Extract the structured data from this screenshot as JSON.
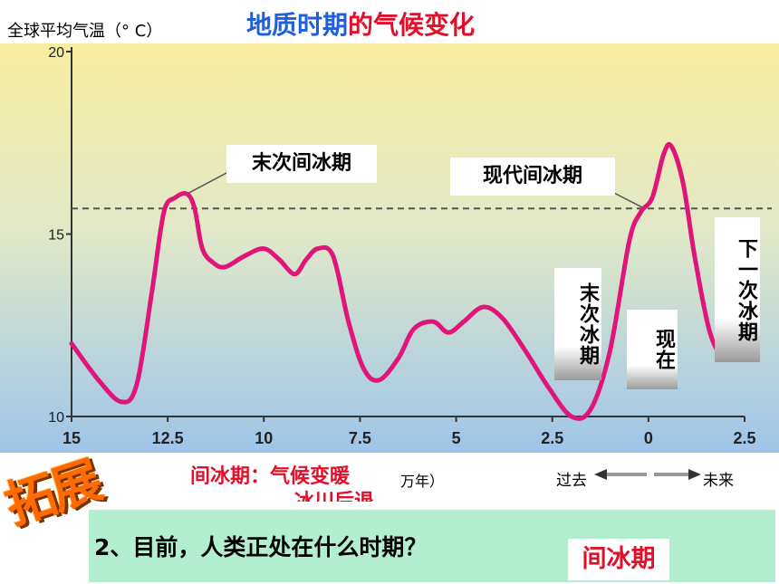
{
  "header": {
    "ylabel": "全球平均气温（° C）",
    "title_part1": "地质时期",
    "title_part2": "的气候变化"
  },
  "chart_data": {
    "type": "line",
    "title": "地质时期的气候变化",
    "ylabel": "全球平均气温（° C）",
    "xlabel": "万年）",
    "xlim": [
      15,
      -2.5
    ],
    "ylim": [
      10,
      20
    ],
    "x_ticks": [
      "15",
      "12.5",
      "10",
      "7.5",
      "5",
      "2.5",
      "0",
      "2.5"
    ],
    "y_ticks": [
      "20",
      "15",
      "10"
    ],
    "reference_line": {
      "y": 15.7,
      "style": "dashed"
    },
    "series": [
      {
        "color": "#e0157a",
        "x": [
          15,
          14.3,
          13.7,
          13.3,
          12.9,
          12.6,
          12.3,
          12.0,
          11.8,
          11.6,
          11.3,
          11.0,
          10.5,
          10.0,
          9.6,
          9.2,
          8.9,
          8.6,
          8.2,
          7.8,
          7.4,
          7.0,
          6.5,
          6.1,
          5.6,
          5.2,
          4.8,
          4.3,
          3.8,
          3.2,
          2.6,
          2.0,
          1.5,
          1.0,
          0.5,
          0.2,
          -0.1,
          -0.4,
          -0.6,
          -0.9,
          -1.2,
          -1.6,
          -2.0,
          -2.5
        ],
        "y": [
          12.0,
          11.0,
          10.4,
          10.9,
          13.5,
          15.6,
          16.0,
          16.1,
          15.7,
          14.6,
          14.2,
          14.1,
          14.4,
          14.6,
          14.3,
          13.9,
          14.3,
          14.6,
          14.4,
          12.6,
          11.3,
          11.0,
          11.6,
          12.4,
          12.6,
          12.3,
          12.6,
          13.0,
          12.7,
          11.8,
          10.8,
          10.0,
          10.2,
          11.8,
          14.8,
          15.6,
          16.0,
          17.2,
          17.4,
          16.4,
          14.4,
          12.3,
          11.6,
          11.7
        ]
      }
    ],
    "annotations": [
      {
        "text": "末次间冰期",
        "x": 12.0,
        "y": 16.1
      },
      {
        "text": "现代间冰期",
        "x": 0.1,
        "y": 15.7
      },
      {
        "text": "末次冰期",
        "x": 2.2,
        "y": 10.0
      },
      {
        "text": "现在",
        "x": 0,
        "y": 11.2
      },
      {
        "text": "下一次冰期",
        "x": -1.8,
        "y": 11.6
      }
    ]
  },
  "labels": {
    "last_interglacial": "末次间冰期",
    "modern_interglacial": "现代间冰期",
    "last_glacial": "末次冰期",
    "now": "现在",
    "next_glacial": "下一次冰期"
  },
  "extension": {
    "badge": "拓展",
    "definition_line1": "间冰期：气候变暖",
    "definition_line2": "冰川后退",
    "x_unit": "万年）",
    "past": "过去",
    "future": "未来"
  },
  "quiz": {
    "question": "2、目前，人类正处在什么时期？",
    "answer": "间冰期"
  },
  "colors": {
    "curve": "#e0157a",
    "title_blue": "#1e5fdc",
    "title_red": "#e0102a",
    "bg_top": "#f7eda0",
    "bg_bottom": "#9ec5e8",
    "question_panel": "#b3eed0"
  }
}
